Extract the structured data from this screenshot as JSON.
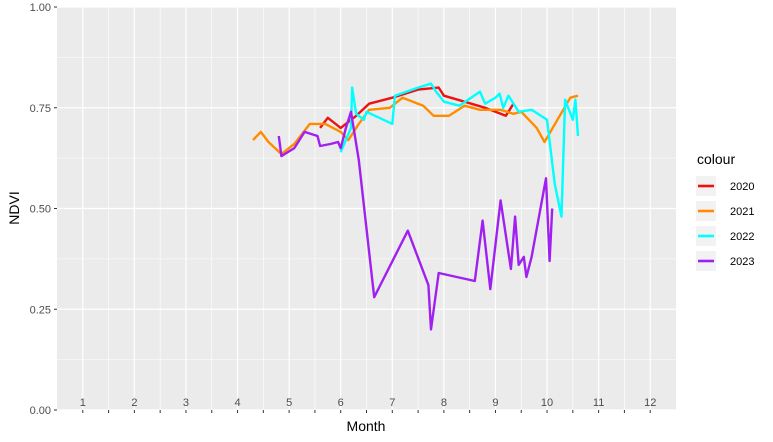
{
  "chart_data": {
    "type": "line",
    "xlabel": "Month",
    "ylabel": "NDVI",
    "xlim": [
      0.5,
      12.5
    ],
    "ylim": [
      0,
      1
    ],
    "x_tick_labels": [
      "1",
      "2",
      "3",
      "4",
      "5",
      "6",
      "7",
      "8",
      "9",
      "10",
      "11",
      "12"
    ],
    "y_ticks": [
      0,
      0.25,
      0.5,
      0.75,
      1
    ],
    "y_tick_labels": [
      "0.00",
      "0.25",
      "0.50",
      "0.75",
      "1.00"
    ],
    "grid": true,
    "legend": {
      "title": "colour",
      "position": "right"
    },
    "series": [
      {
        "name": "2020",
        "color": "#ee1111",
        "points": [
          [
            5.6,
            0.7
          ],
          [
            5.75,
            0.725
          ],
          [
            6.0,
            0.7
          ],
          [
            6.3,
            0.73
          ],
          [
            6.55,
            0.76
          ],
          [
            7.0,
            0.775
          ],
          [
            7.5,
            0.795
          ],
          [
            7.9,
            0.8
          ],
          [
            8.0,
            0.78
          ],
          [
            8.4,
            0.765
          ],
          [
            8.8,
            0.75
          ],
          [
            9.2,
            0.73
          ],
          [
            9.35,
            0.76
          ]
        ]
      },
      {
        "name": "2021",
        "color": "#ff8c00",
        "points": [
          [
            4.3,
            0.67
          ],
          [
            4.45,
            0.69
          ],
          [
            4.6,
            0.665
          ],
          [
            4.85,
            0.635
          ],
          [
            5.1,
            0.66
          ],
          [
            5.4,
            0.71
          ],
          [
            5.7,
            0.71
          ],
          [
            6.0,
            0.69
          ],
          [
            6.15,
            0.67
          ],
          [
            6.35,
            0.71
          ],
          [
            6.55,
            0.745
          ],
          [
            6.95,
            0.75
          ],
          [
            7.2,
            0.775
          ],
          [
            7.6,
            0.755
          ],
          [
            7.8,
            0.73
          ],
          [
            8.1,
            0.73
          ],
          [
            8.4,
            0.755
          ],
          [
            8.7,
            0.745
          ],
          [
            9.1,
            0.745
          ],
          [
            9.35,
            0.735
          ],
          [
            9.5,
            0.74
          ],
          [
            9.8,
            0.7
          ],
          [
            9.95,
            0.665
          ],
          [
            10.2,
            0.72
          ],
          [
            10.45,
            0.775
          ],
          [
            10.6,
            0.78
          ]
        ]
      },
      {
        "name": "2022",
        "color": "#00ffff",
        "points": [
          [
            6.0,
            0.64
          ],
          [
            6.2,
            0.7
          ],
          [
            6.22,
            0.8
          ],
          [
            6.3,
            0.735
          ],
          [
            6.45,
            0.72
          ],
          [
            6.5,
            0.74
          ],
          [
            7.0,
            0.71
          ],
          [
            7.05,
            0.78
          ],
          [
            7.5,
            0.8
          ],
          [
            7.75,
            0.81
          ],
          [
            7.85,
            0.79
          ],
          [
            8.0,
            0.765
          ],
          [
            8.3,
            0.755
          ],
          [
            8.7,
            0.79
          ],
          [
            8.8,
            0.76
          ],
          [
            9.0,
            0.775
          ],
          [
            9.08,
            0.785
          ],
          [
            9.15,
            0.75
          ],
          [
            9.25,
            0.78
          ],
          [
            9.45,
            0.74
          ],
          [
            9.7,
            0.745
          ],
          [
            10.0,
            0.72
          ],
          [
            10.15,
            0.56
          ],
          [
            10.28,
            0.48
          ],
          [
            10.35,
            0.77
          ],
          [
            10.5,
            0.72
          ],
          [
            10.55,
            0.77
          ],
          [
            10.6,
            0.68
          ]
        ]
      },
      {
        "name": "2023",
        "color": "#a020f0",
        "points": [
          [
            4.8,
            0.68
          ],
          [
            4.85,
            0.63
          ],
          [
            5.1,
            0.65
          ],
          [
            5.3,
            0.69
          ],
          [
            5.55,
            0.68
          ],
          [
            5.6,
            0.655
          ],
          [
            5.8,
            0.66
          ],
          [
            5.95,
            0.665
          ],
          [
            6.0,
            0.65
          ],
          [
            6.1,
            0.7
          ],
          [
            6.2,
            0.74
          ],
          [
            6.35,
            0.62
          ],
          [
            6.65,
            0.28
          ],
          [
            7.3,
            0.445
          ],
          [
            7.7,
            0.31
          ],
          [
            7.75,
            0.2
          ],
          [
            7.9,
            0.34
          ],
          [
            8.6,
            0.32
          ],
          [
            8.75,
            0.47
          ],
          [
            8.9,
            0.3
          ],
          [
            9.1,
            0.52
          ],
          [
            9.3,
            0.35
          ],
          [
            9.38,
            0.48
          ],
          [
            9.45,
            0.36
          ],
          [
            9.55,
            0.38
          ],
          [
            9.6,
            0.33
          ],
          [
            9.7,
            0.38
          ],
          [
            9.98,
            0.575
          ],
          [
            10.05,
            0.37
          ],
          [
            10.1,
            0.5
          ]
        ]
      }
    ]
  }
}
